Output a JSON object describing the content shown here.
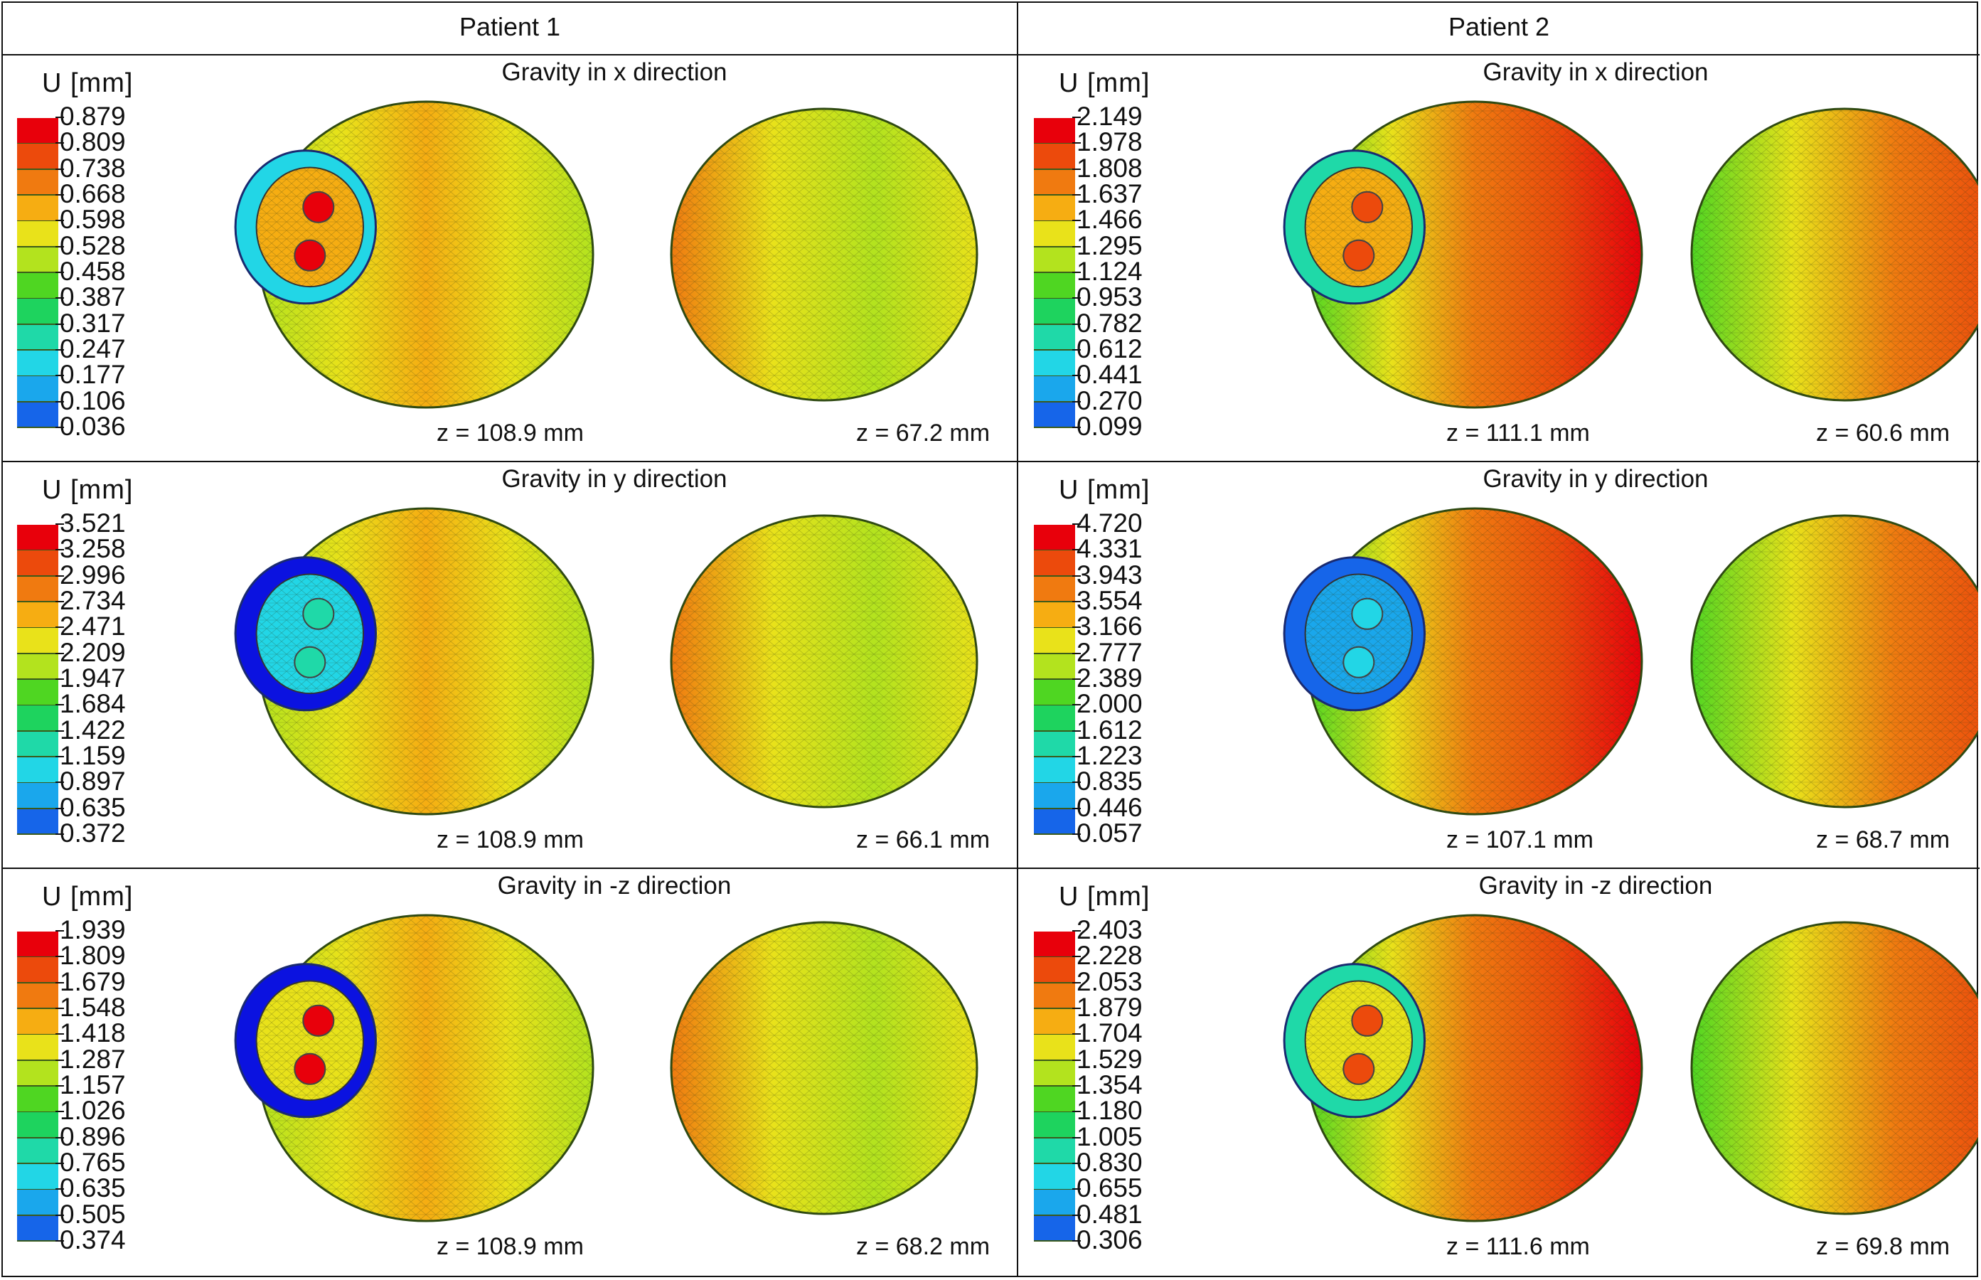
{
  "columns": [
    {
      "title": "Patient 1",
      "rows": [
        {
          "gravity_title": "Gravity in x direction",
          "legend_title": "U [mm]",
          "ticks": [
            "0.879",
            "0.809",
            "0.738",
            "0.668",
            "0.598",
            "0.528",
            "0.458",
            "0.387",
            "0.317",
            "0.247",
            "0.177",
            "0.106",
            "0.036"
          ],
          "z_left": "z = 108.9 mm",
          "z_right": "z = 67.2 mm"
        },
        {
          "gravity_title": "Gravity in y direction",
          "legend_title": "U [mm]",
          "ticks": [
            "3.521",
            "3.258",
            "2.996",
            "2.734",
            "2.471",
            "2.209",
            "1.947",
            "1.684",
            "1.422",
            "1.159",
            "0.897",
            "0.635",
            "0.372"
          ],
          "z_left": "z = 108.9 mm",
          "z_right": "z = 66.1 mm"
        },
        {
          "gravity_title": "Gravity in -z direction",
          "legend_title": "U [mm]",
          "ticks": [
            "1.939",
            "1.809",
            "1.679",
            "1.548",
            "1.418",
            "1.287",
            "1.157",
            "1.026",
            "0.896",
            "0.765",
            "0.635",
            "0.505",
            "0.374"
          ],
          "z_left": "z = 108.9 mm",
          "z_right": "z = 68.2 mm"
        }
      ]
    },
    {
      "title": "Patient 2",
      "rows": [
        {
          "gravity_title": "Gravity in x direction",
          "legend_title": "U [mm]",
          "ticks": [
            "2.149",
            "1.978",
            "1.808",
            "1.637",
            "1.466",
            "1.295",
            "1.124",
            "0.953",
            "0.782",
            "0.612",
            "0.441",
            "0.270",
            "0.099"
          ],
          "z_left": "z = 111.1 mm",
          "z_right": "z = 60.6 mm"
        },
        {
          "gravity_title": "Gravity in y direction",
          "legend_title": "U [mm]",
          "ticks": [
            "4.720",
            "4.331",
            "3.943",
            "3.554",
            "3.166",
            "2.777",
            "2.389",
            "2.000",
            "1.612",
            "1.223",
            "0.835",
            "0.446",
            "0.057"
          ],
          "z_left": "z = 107.1 mm",
          "z_right": "z = 68.7 mm"
        },
        {
          "gravity_title": "Gravity in -z direction",
          "legend_title": "U [mm]",
          "ticks": [
            "2.403",
            "2.228",
            "2.053",
            "1.879",
            "1.704",
            "1.529",
            "1.354",
            "1.180",
            "1.005",
            "0.830",
            "0.655",
            "0.481",
            "0.306"
          ],
          "z_left": "z = 111.6 mm",
          "z_right": "z = 69.8 mm"
        }
      ]
    }
  ],
  "colormap": [
    "#e8000b",
    "#ec4a0c",
    "#f07a10",
    "#f6ad12",
    "#e9e21a",
    "#b3e31e",
    "#4fd622",
    "#1ed35e",
    "#1fd9a8",
    "#22d6e6",
    "#1aa7ec",
    "#1665e9",
    "#0b12e0"
  ]
}
